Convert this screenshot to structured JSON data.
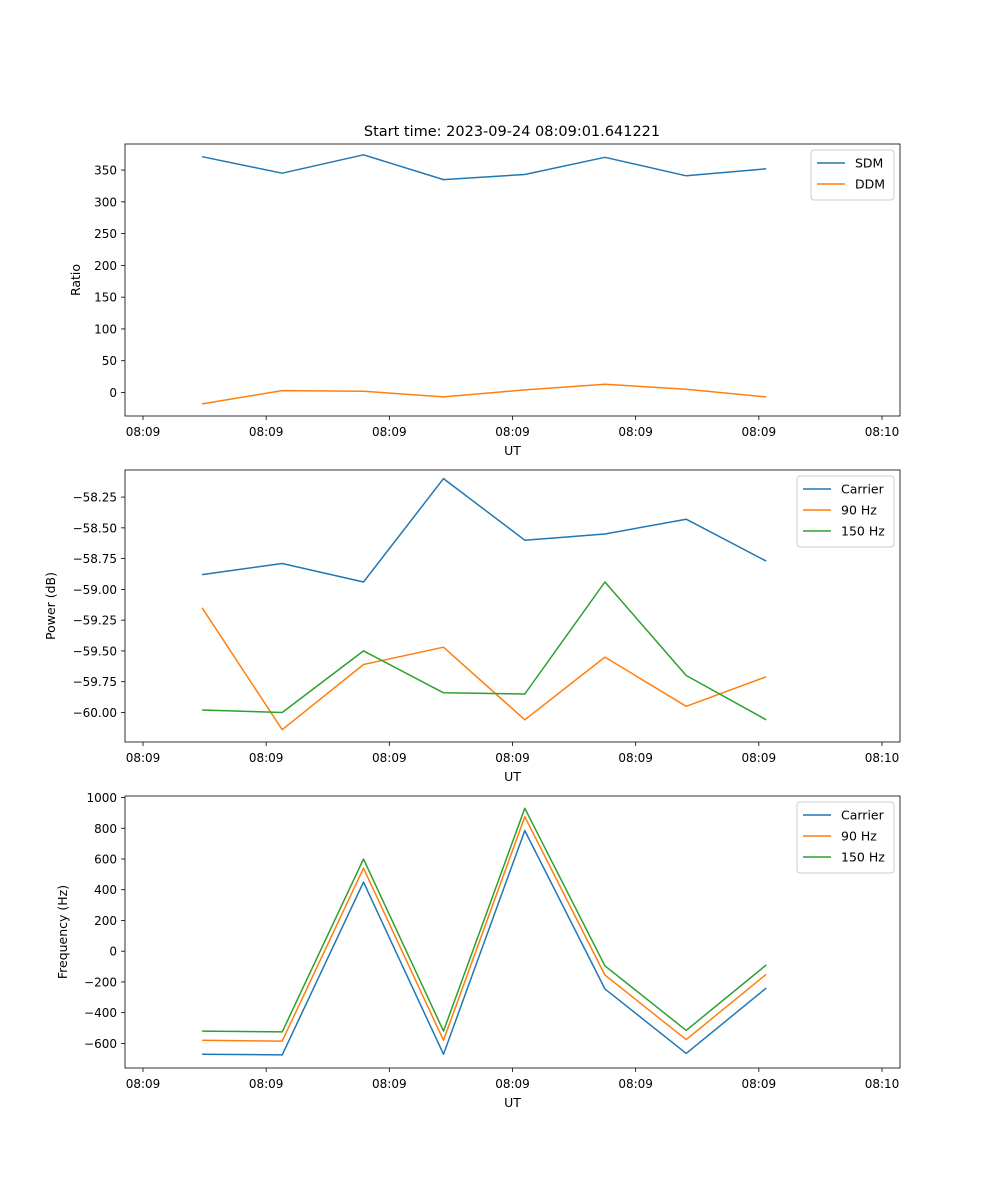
{
  "figure_title": "Start time: 2023-09-24 08:09:01.641221",
  "chart_data": [
    {
      "type": "line",
      "title": "Start time: 2023-09-24 08:09:01.641221",
      "xlabel": "UT",
      "ylabel": "Ratio",
      "xlim": [
        0,
        6
      ],
      "ylim": [
        -37,
        391
      ],
      "xtick_positions": [
        0,
        1,
        2,
        3,
        4,
        5,
        6
      ],
      "xtick_labels": [
        "08:09",
        "08:09",
        "08:09",
        "08:09",
        "08:09",
        "08:09",
        "08:10"
      ],
      "ytick_values": [
        0,
        50,
        100,
        150,
        200,
        250,
        300,
        350
      ],
      "ytick_labels": [
        "0",
        "50",
        "100",
        "150",
        "200",
        "250",
        "300",
        "350"
      ],
      "x": [
        0.48,
        1.13,
        1.79,
        2.44,
        3.1,
        3.75,
        4.41,
        5.06
      ],
      "series": [
        {
          "name": "SDM",
          "color": "#1f77b4",
          "values": [
            371,
            345,
            374,
            335,
            343,
            370,
            341,
            352
          ]
        },
        {
          "name": "DDM",
          "color": "#ff7f0e",
          "values": [
            -18,
            3,
            2,
            -7,
            4,
            13,
            5,
            -7
          ]
        }
      ],
      "legend": "top-right"
    },
    {
      "type": "line",
      "title": "",
      "xlabel": "UT",
      "ylabel": "Power (dB)",
      "xlim": [
        0,
        6
      ],
      "ylim": [
        -60.24,
        -58.03
      ],
      "xtick_positions": [
        0,
        1,
        2,
        3,
        4,
        5,
        6
      ],
      "xtick_labels": [
        "08:09",
        "08:09",
        "08:09",
        "08:09",
        "08:09",
        "08:09",
        "08:10"
      ],
      "ytick_values": [
        -60.0,
        -59.75,
        -59.5,
        -59.25,
        -59.0,
        -58.75,
        -58.5,
        -58.25
      ],
      "ytick_labels": [
        "−60.00",
        "−59.75",
        "−59.50",
        "−59.25",
        "−59.00",
        "−58.75",
        "−58.50",
        "−58.25"
      ],
      "x": [
        0.48,
        1.13,
        1.79,
        2.44,
        3.1,
        3.75,
        4.41,
        5.06
      ],
      "series": [
        {
          "name": "Carrier",
          "color": "#1f77b4",
          "values": [
            -58.88,
            -58.79,
            -58.94,
            -58.1,
            -58.6,
            -58.55,
            -58.43,
            -58.77
          ]
        },
        {
          "name": "90 Hz",
          "color": "#ff7f0e",
          "values": [
            -59.15,
            -60.14,
            -59.61,
            -59.47,
            -60.06,
            -59.55,
            -59.95,
            -59.71
          ]
        },
        {
          "name": "150 Hz",
          "color": "#2ca02c",
          "values": [
            -59.98,
            -60.0,
            -59.5,
            -59.84,
            -59.85,
            -58.94,
            -59.7,
            -60.06
          ]
        }
      ],
      "legend": "top-right"
    },
    {
      "type": "line",
      "title": "",
      "xlabel": "UT",
      "ylabel": "Frequency (Hz)",
      "xlim": [
        0,
        6
      ],
      "ylim": [
        -760,
        1010
      ],
      "xtick_positions": [
        0,
        1,
        2,
        3,
        4,
        5,
        6
      ],
      "xtick_labels": [
        "08:09",
        "08:09",
        "08:09",
        "08:09",
        "08:09",
        "08:09",
        "08:10"
      ],
      "ytick_values": [
        -600,
        -400,
        -200,
        0,
        200,
        400,
        600,
        800,
        1000
      ],
      "ytick_labels": [
        "−600",
        "−400",
        "−200",
        "0",
        "200",
        "400",
        "600",
        "800",
        "1000"
      ],
      "x": [
        0.48,
        1.13,
        1.79,
        2.44,
        3.1,
        3.75,
        4.41,
        5.06
      ],
      "series": [
        {
          "name": "Carrier",
          "color": "#1f77b4",
          "values": [
            -670,
            -675,
            450,
            -670,
            785,
            -245,
            -665,
            -240
          ]
        },
        {
          "name": "90 Hz",
          "color": "#ff7f0e",
          "values": [
            -580,
            -585,
            540,
            -580,
            875,
            -155,
            -575,
            -150
          ]
        },
        {
          "name": "150 Hz",
          "color": "#2ca02c",
          "values": [
            -520,
            -525,
            600,
            -520,
            930,
            -95,
            -515,
            -90
          ]
        }
      ],
      "legend": "top-right"
    }
  ]
}
